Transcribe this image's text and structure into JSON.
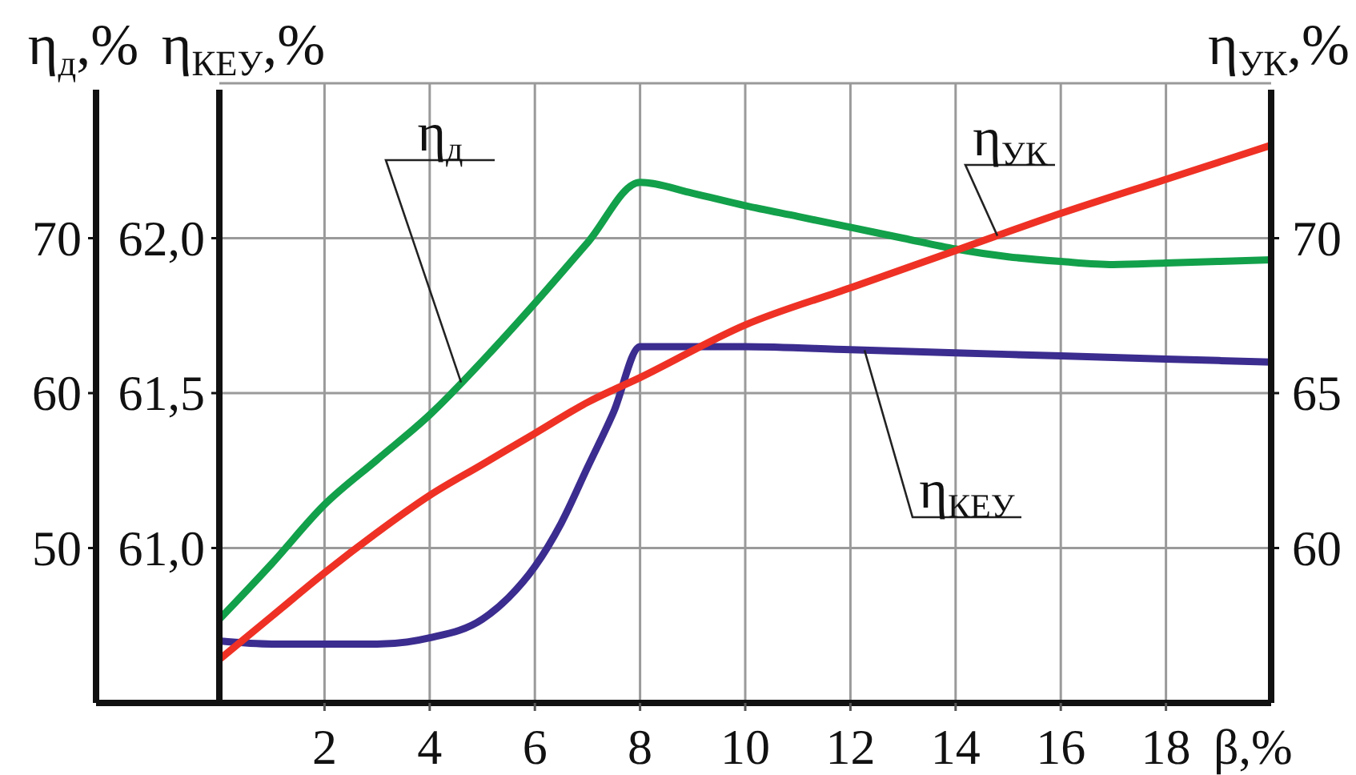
{
  "chart_data": {
    "type": "line",
    "xlabel": "β,%",
    "ylabel": "η$_{д}$,%",
    "y2label": "η$_{УК}$,%",
    "y3label": "η$_{КЕУ}$,%",
    "xlim": [
      0,
      20
    ],
    "xticks": [
      2,
      4,
      6,
      8,
      10,
      12,
      14,
      16,
      18
    ],
    "ylim": [
      40,
      80
    ],
    "yticks": [
      50,
      60,
      70
    ],
    "y2lim": [
      55,
      75
    ],
    "y2ticks": [
      60,
      65,
      70
    ],
    "y3lim": [
      60.5,
      62.5
    ],
    "y3ticks": [
      {
        "value": 61,
        "label": "61,0"
      },
      {
        "value": 61.5,
        "label": "61,5"
      },
      {
        "value": 62,
        "label": "62,0"
      }
    ],
    "grid": true,
    "series": [
      {
        "name": "η$_{д}$",
        "color": "#12a04a",
        "axis": "y",
        "x": [
          0,
          1,
          2,
          3,
          4,
          5.2,
          6,
          7,
          8,
          9,
          10,
          11,
          12,
          13,
          14,
          15,
          16,
          17,
          18,
          19,
          20
        ],
        "values": [
          45.4,
          49.0,
          52.8,
          55.7,
          58.6,
          62.8,
          65.8,
          69.7,
          73.6,
          72.9,
          72.1,
          71.4,
          70.7,
          70.0,
          69.3,
          68.8,
          68.5,
          68.3,
          68.4,
          68.5,
          68.6
        ]
      },
      {
        "name": "η$_{КЕУ}$",
        "color": "#3b2c8f",
        "axis": "y3",
        "x": [
          0,
          1,
          2,
          3,
          4,
          5,
          5.5,
          6,
          6.5,
          7,
          7.5,
          8,
          10,
          12,
          14,
          16,
          18,
          20
        ],
        "values": [
          60.7,
          60.69,
          60.69,
          60.69,
          60.71,
          60.77,
          60.84,
          60.94,
          61.08,
          61.26,
          61.44,
          61.65,
          61.65,
          61.64,
          61.63,
          61.62,
          61.61,
          61.6
        ]
      },
      {
        "name": "η$_{УК}$",
        "color": "#ee3124",
        "axis": "y2",
        "x": [
          0,
          1,
          2,
          3,
          4,
          5,
          6,
          7,
          8,
          10,
          12,
          14,
          16,
          18,
          20
        ],
        "values": [
          56.4,
          57.8,
          59.2,
          60.5,
          61.7,
          62.7,
          63.7,
          64.7,
          65.5,
          67.2,
          68.4,
          69.6,
          70.8,
          71.9,
          73.0
        ]
      }
    ]
  }
}
